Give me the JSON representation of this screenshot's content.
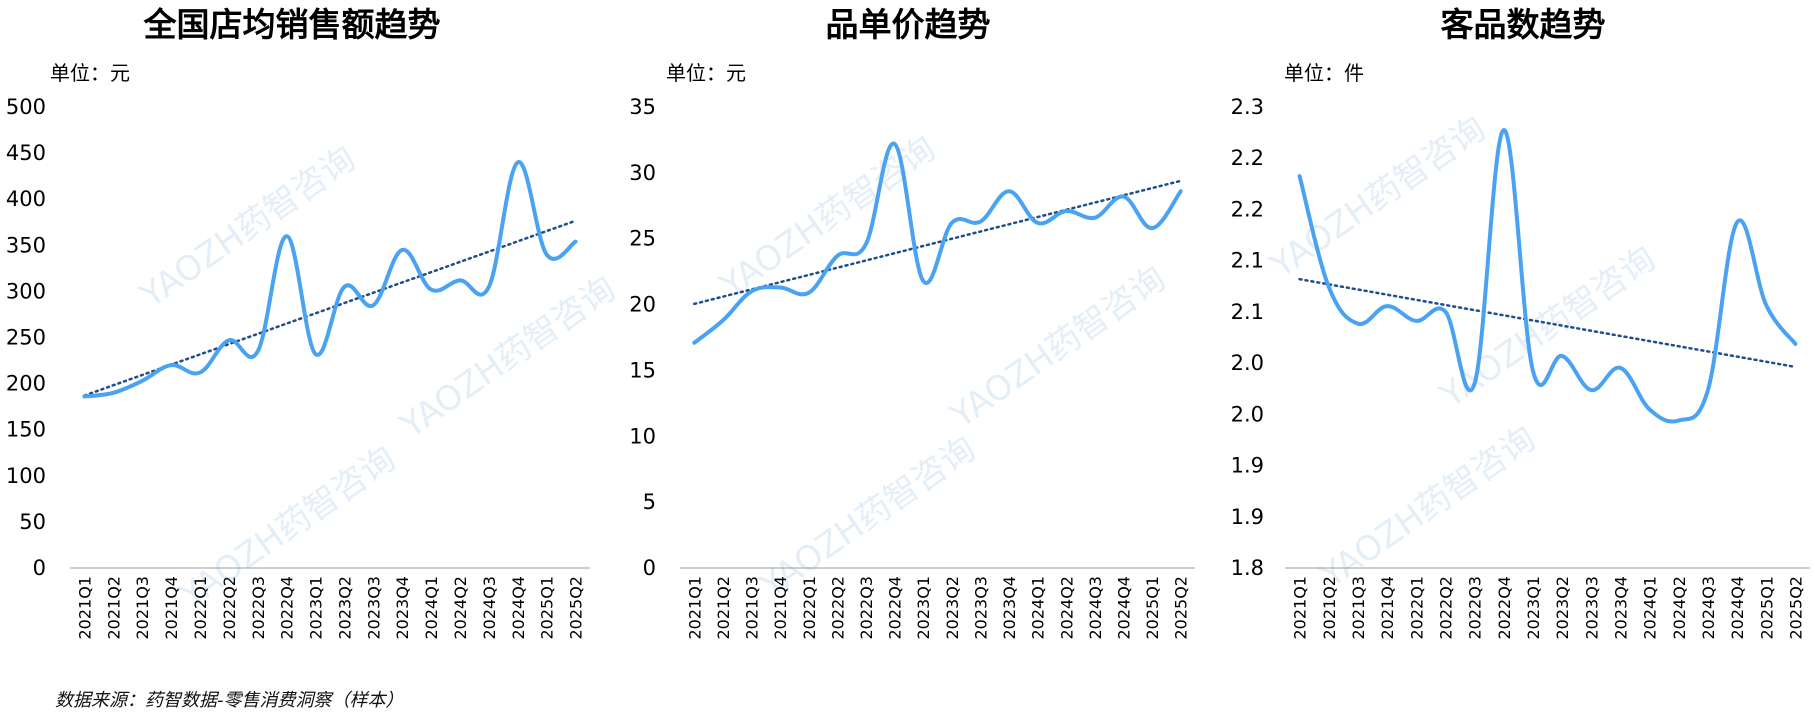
{
  "source": "数据来源：药智数据-零售消费洞察（样本）",
  "watermark_text": "YAOZH药智咨询",
  "colors": {
    "line": "#4aa3f2",
    "trend": "#1f4e8c",
    "axis": "#bdbdbd"
  },
  "chart_data": [
    {
      "type": "line",
      "title": "全国店均销售额趋势",
      "unit": "单位：元",
      "categories": [
        "2021Q1",
        "2021Q2",
        "2021Q3",
        "2021Q4",
        "2022Q1",
        "2022Q2",
        "2022Q3",
        "2022Q4",
        "2023Q1",
        "2023Q2",
        "2023Q3",
        "2023Q4",
        "2024Q1",
        "2024Q2",
        "2024Q3",
        "2024Q4",
        "2025Q1",
        "2025Q2"
      ],
      "series": [
        {
          "values": [
            186,
            190,
            203,
            220,
            212,
            247,
            235,
            360,
            232,
            305,
            285,
            345,
            302,
            312,
            305,
            440,
            340,
            354
          ]
        }
      ],
      "trendline": "linear",
      "ylim": [
        0,
        500
      ],
      "yticks": [
        "0",
        "50",
        "100",
        "150",
        "200",
        "250",
        "300",
        "350",
        "400",
        "450",
        "500"
      ]
    },
    {
      "type": "line",
      "title": "品单价趋势",
      "unit": "单位：元",
      "categories": [
        "2021Q1",
        "2021Q2",
        "2021Q3",
        "2021Q4",
        "2022Q1",
        "2022Q2",
        "2022Q3",
        "2022Q4",
        "2023Q1",
        "2023Q2",
        "2023Q3",
        "2023Q4",
        "2024Q1",
        "2024Q2",
        "2024Q3",
        "2024Q4",
        "2025Q1",
        "2025Q2"
      ],
      "series": [
        {
          "values": [
            17.1,
            18.8,
            21.0,
            21.3,
            20.9,
            23.7,
            24.6,
            32.2,
            21.8,
            26.2,
            26.3,
            28.6,
            26.2,
            27.1,
            26.6,
            28.2,
            25.8,
            28.6
          ]
        }
      ],
      "trendline": "linear",
      "ylim": [
        0,
        35
      ],
      "yticks": [
        "0",
        "5",
        "10",
        "15",
        "20",
        "25",
        "30",
        "35"
      ]
    },
    {
      "type": "line",
      "title": "客品数趋势",
      "unit": "单位：件",
      "categories": [
        "2021Q1",
        "2021Q2",
        "2021Q3",
        "2021Q4",
        "2022Q1",
        "2022Q2",
        "2022Q3",
        "2022Q4",
        "2023Q1",
        "2023Q2",
        "2023Q3",
        "2023Q4",
        "2024Q1",
        "2024Q2",
        "2024Q3",
        "2024Q4",
        "2025Q1",
        "2025Q2"
      ],
      "series": [
        {
          "values": [
            2.225,
            2.105,
            2.065,
            2.084,
            2.068,
            2.078,
            2.0,
            2.275,
            2.014,
            2.03,
            1.993,
            2.017,
            1.972,
            1.96,
            1.993,
            2.175,
            2.085,
            2.043
          ]
        }
      ],
      "trendline": "linear",
      "ylim": [
        1.8,
        2.3
      ],
      "yticks": [
        "1.8",
        "1.9",
        "1.9",
        "2.0",
        "2.0",
        "2.1",
        "2.1",
        "2.2",
        "2.2",
        "2.3"
      ]
    }
  ]
}
